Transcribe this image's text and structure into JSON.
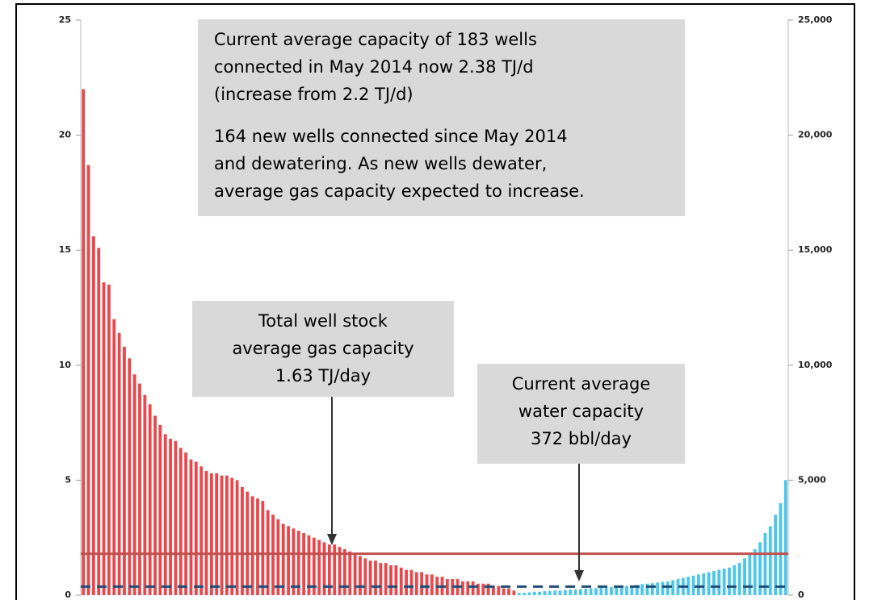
{
  "chart_data": {
    "type": "bar",
    "series": [
      {
        "name": "Gas capacity",
        "color": "#e8484c",
        "axis": "y",
        "values": [
          22,
          18.7,
          15.6,
          15.1,
          13.6,
          13.5,
          12,
          11.4,
          10.8,
          10.3,
          9.6,
          9.2,
          8.7,
          8.3,
          7.8,
          7.4,
          7,
          6.8,
          6.7,
          6.4,
          6.2,
          5.9,
          5.8,
          5.6,
          5.4,
          5.3,
          5.3,
          5.2,
          5.2,
          5.1,
          5,
          4.7,
          4.5,
          4.3,
          4.2,
          4.1,
          3.7,
          3.5,
          3.3,
          3.1,
          3,
          2.9,
          2.8,
          2.7,
          2.6,
          2.5,
          2.4,
          2.3,
          2.2,
          2.2,
          2.1,
          2,
          1.9,
          1.8,
          1.7,
          1.6,
          1.5,
          1.5,
          1.4,
          1.4,
          1.3,
          1.3,
          1.2,
          1.1,
          1.1,
          1,
          1,
          0.9,
          0.9,
          0.8,
          0.8,
          0.7,
          0.7,
          0.7,
          0.6,
          0.6,
          0.6,
          0.5,
          0.5,
          0.5,
          0.4,
          0.4,
          0.3,
          0.3,
          0.2,
          null,
          null,
          null,
          null,
          null,
          null,
          null,
          null,
          null,
          null,
          null,
          null,
          null,
          null,
          null,
          null,
          null,
          null,
          null,
          null,
          null,
          null,
          null,
          null,
          null,
          null,
          null,
          null,
          null,
          null,
          null,
          null,
          null,
          null,
          null,
          null,
          null,
          null,
          null,
          null,
          null,
          null,
          null,
          null,
          null,
          null,
          null,
          null,
          null,
          null,
          null,
          null,
          null
        ]
      },
      {
        "name": "Water capacity",
        "color": "#4cc6ea",
        "axis": "y2",
        "values": [
          null,
          null,
          null,
          null,
          null,
          null,
          null,
          null,
          null,
          null,
          null,
          null,
          null,
          null,
          null,
          null,
          null,
          null,
          null,
          null,
          null,
          null,
          null,
          null,
          null,
          null,
          null,
          null,
          null,
          null,
          null,
          null,
          null,
          null,
          null,
          null,
          null,
          null,
          null,
          null,
          null,
          null,
          null,
          null,
          null,
          null,
          null,
          null,
          null,
          null,
          null,
          null,
          null,
          null,
          null,
          null,
          null,
          null,
          null,
          null,
          null,
          null,
          null,
          null,
          null,
          null,
          null,
          null,
          null,
          null,
          null,
          null,
          null,
          null,
          null,
          null,
          null,
          null,
          null,
          null,
          null,
          null,
          null,
          null,
          null,
          100,
          100,
          120,
          150,
          150,
          170,
          180,
          200,
          200,
          220,
          240,
          250,
          260,
          280,
          300,
          300,
          320,
          330,
          350,
          370,
          380,
          400,
          420,
          450,
          480,
          500,
          520,
          550,
          580,
          600,
          650,
          700,
          750,
          800,
          850,
          900,
          950,
          1000,
          1050,
          1100,
          1150,
          1200,
          1300,
          1400,
          1600,
          1800,
          2000,
          2300,
          2700,
          3000,
          3500,
          4000,
          5000
        ]
      }
    ],
    "ylim": [
      0,
      25
    ],
    "yticks": [
      0,
      5,
      10,
      15,
      20,
      25
    ],
    "y2lim": [
      0,
      25000
    ],
    "y2ticks": [
      0,
      {
        "value": 5000,
        "label": "5,000"
      },
      {
        "value": 10000,
        "label": "10,000"
      },
      {
        "value": 15000,
        "label": "15,000"
      },
      {
        "value": 20000,
        "label": "20,000"
      },
      {
        "value": 25000,
        "label": "25,000"
      }
    ],
    "reference_lines": [
      {
        "value": 1.8,
        "axis": "y",
        "color": "#c0504d",
        "dashed": false
      },
      {
        "value": 372,
        "axis": "y2",
        "color": "#1f4e79",
        "dashed": true
      }
    ],
    "annotations": [
      {
        "paragraphs": [
          [
            "Current average capacity of 183 wells",
            "connected in May 2014 now 2.38 TJ/d",
            "(increase from 2.2 TJ/d)"
          ],
          [
            "164 new wells connected since May 2014",
            "and dewatering. As new wells dewater,",
            "average gas capacity expected to increase."
          ]
        ]
      },
      {
        "paragraphs": [
          [
            "Total well stock",
            "average gas capacity",
            "1.63 TJ/day"
          ]
        ]
      },
      {
        "paragraphs": [
          [
            "Current average",
            "water capacity",
            "372 bbl/day"
          ]
        ]
      }
    ]
  }
}
